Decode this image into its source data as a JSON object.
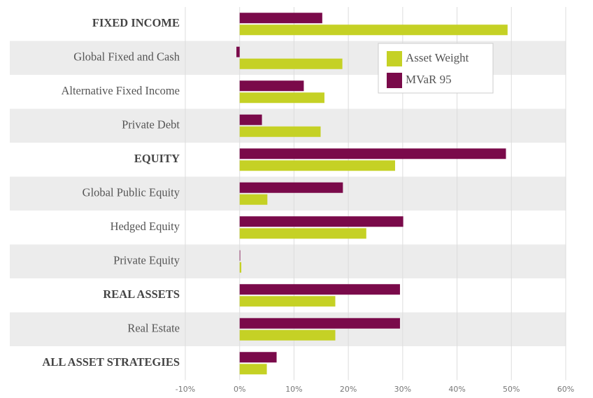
{
  "chart_data": {
    "type": "hbar",
    "categories": [
      "FIXED INCOME",
      "Global Fixed and Cash",
      "Alternative Fixed Income",
      "Private Debt",
      "EQUITY",
      "Global Public Equity",
      "Hedged Equity",
      "Private Equity",
      "REAL ASSETS",
      "Real Estate",
      "ALL ASSET STRATEGIES"
    ],
    "series": [
      {
        "name": "Asset Weight",
        "color": "#c5d125",
        "values": [
          49.3,
          18.9,
          15.6,
          14.9,
          28.6,
          5.1,
          23.3,
          0.3,
          17.6,
          17.6,
          5.0
        ]
      },
      {
        "name": "MVaR 95",
        "color": "#7a0a4a",
        "values": [
          15.2,
          -0.6,
          11.8,
          4.1,
          49.0,
          19.0,
          30.1,
          0.1,
          29.5,
          29.5,
          6.8
        ]
      }
    ],
    "xlim": [
      -10,
      60
    ],
    "xticks": [
      {
        "value": -10,
        "label": "-10%"
      },
      {
        "value": 0,
        "label": "0%"
      },
      {
        "value": 10,
        "label": "10%"
      },
      {
        "value": 20,
        "label": "20%"
      },
      {
        "value": 30,
        "label": "30%"
      },
      {
        "value": 40,
        "label": "40%"
      },
      {
        "value": 50,
        "label": "50%"
      },
      {
        "value": 60,
        "label": "60%"
      }
    ],
    "grid": true,
    "legend": "upper right"
  }
}
